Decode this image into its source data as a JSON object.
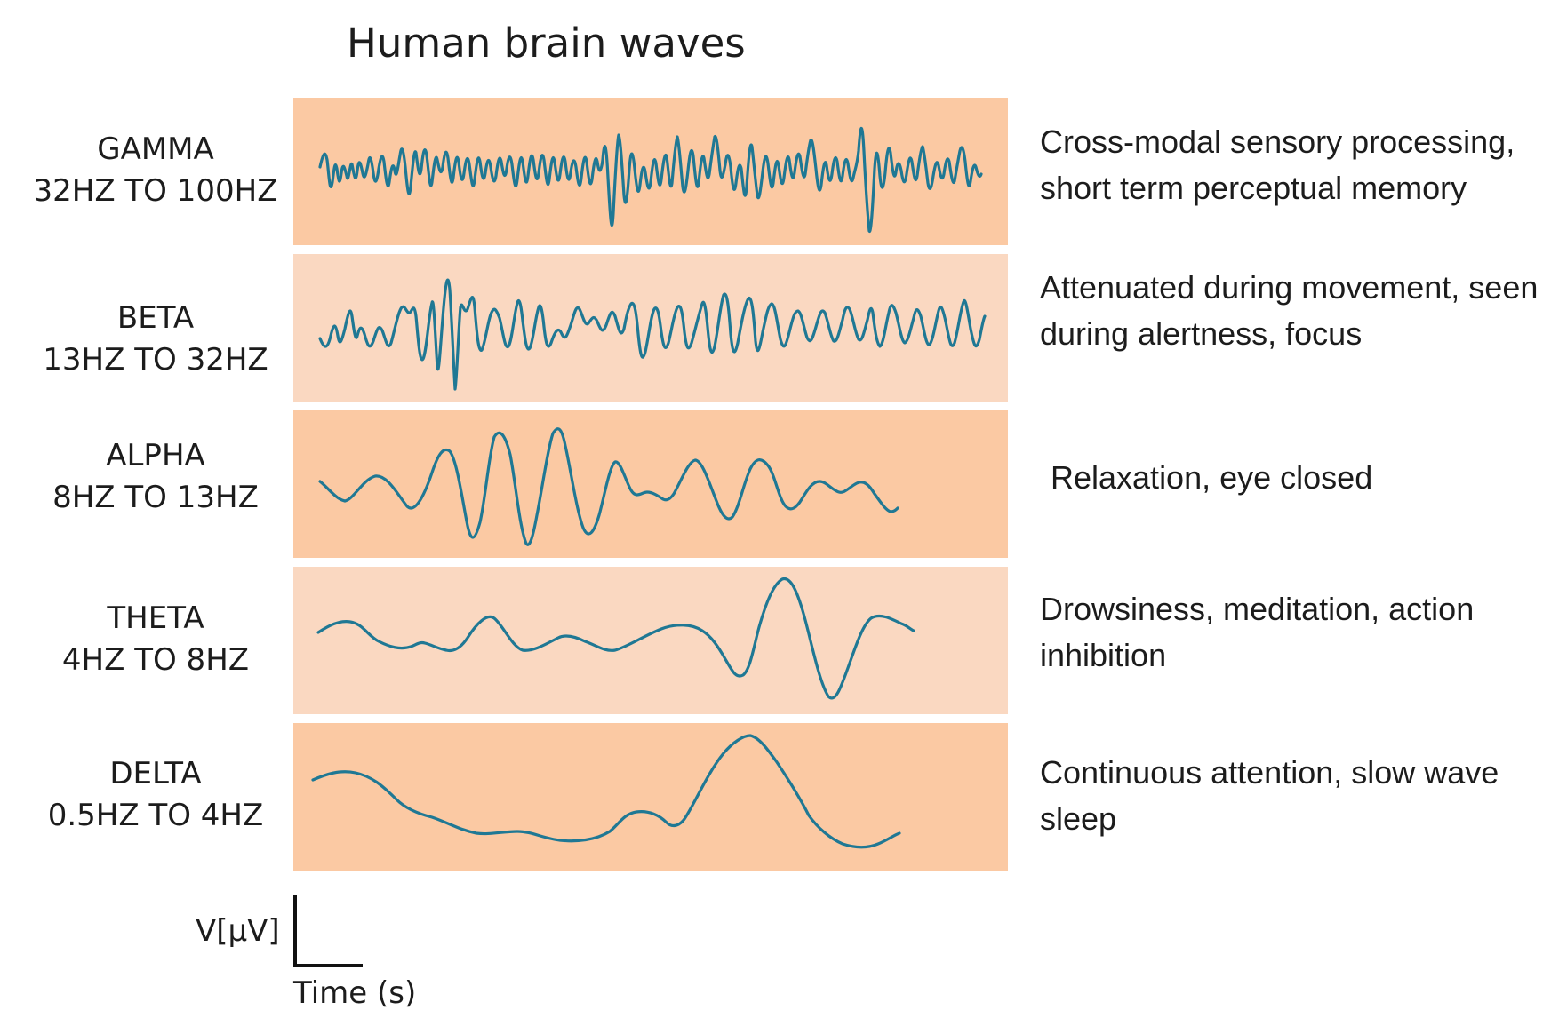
{
  "title": "Human brain waves",
  "bands": [
    {
      "name": "GAMMA",
      "range": "32HZ TO 100HZ",
      "description": "Cross-modal sensory processing, short term perceptual memory"
    },
    {
      "name": "BETA",
      "range": "13HZ TO 32HZ",
      "description": "Attenuated during movement, seen during alertness, focus"
    },
    {
      "name": "ALPHA",
      "range": "8HZ TO 13HZ",
      "description": "Relaxation, eye closed"
    },
    {
      "name": "THETA",
      "range": "4HZ TO 8HZ",
      "description": "Drowsiness, meditation, action inhibition"
    },
    {
      "name": "DELTA",
      "range": "0.5HZ TO 4HZ",
      "description": "Continuous attention, slow wave sleep"
    }
  ],
  "scale_bar": {
    "y_label": "V[μV]",
    "x_label": "Time (s)"
  },
  "colors": {
    "band_dark": "#fbc9a3",
    "band_light": "#fad8c1",
    "wave": "#1f7894",
    "text": "#1c1c1c"
  }
}
